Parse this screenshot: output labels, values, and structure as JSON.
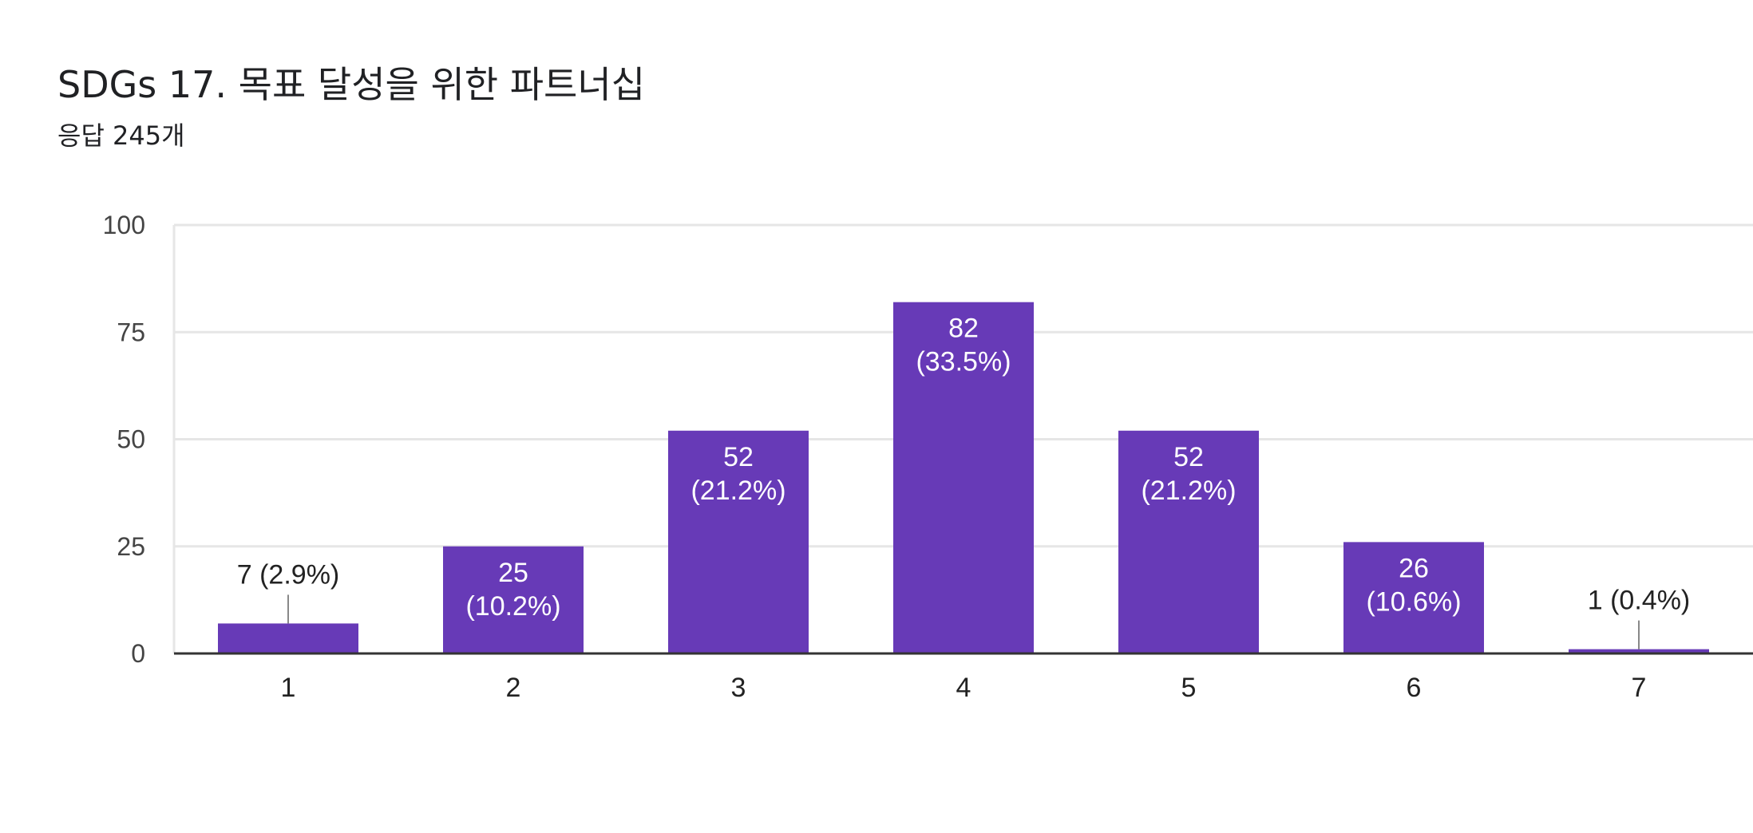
{
  "header": {
    "title": "SDGs 17. 목표 달성을 위한 파트너십",
    "subtitle": "응답 245개"
  },
  "colors": {
    "bar": "#673AB7",
    "grid": "#E6E6E6",
    "axis": "#333333"
  },
  "chart_data": {
    "type": "bar",
    "title": "SDGs 17. 목표 달성을 위한 파트너십",
    "subtitle": "응답 245개",
    "categories": [
      "1",
      "2",
      "3",
      "4",
      "5",
      "6",
      "7"
    ],
    "values": [
      7,
      25,
      52,
      82,
      52,
      26,
      1
    ],
    "data_labels": [
      "7 (2.9%)",
      "25",
      "52",
      "82",
      "52",
      "26",
      "1 (0.4%)"
    ],
    "data_labels_pct": [
      "",
      "(10.2%)",
      "(21.2%)",
      "(33.5%)",
      "(21.2%)",
      "(10.6%)",
      ""
    ],
    "ylim": [
      0,
      100
    ],
    "yticks": [
      "0",
      "25",
      "50",
      "75",
      "100"
    ],
    "grid": true,
    "legend": "none"
  }
}
